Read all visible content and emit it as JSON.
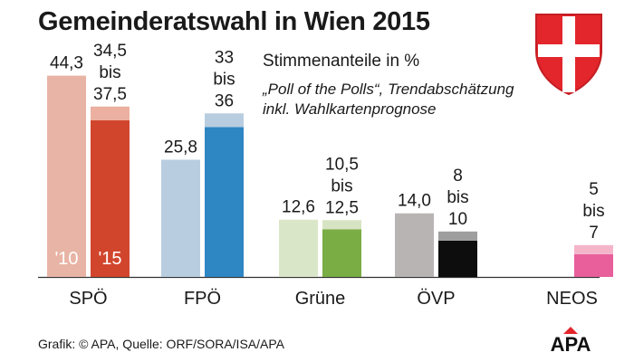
{
  "title": "Gemeinderatswahl in Wien 2015",
  "subtitle": "Stimmenanteile in %",
  "note_lines": [
    "„Poll of the Polls“, Trendabschätzung",
    "inkl. Wahlkartenprognose"
  ],
  "source": "Grafik: © APA, Quelle: ORF/SORA/ISA/APA",
  "logo_text": "APA",
  "chart_data": {
    "type": "bar",
    "categories": [
      "SPÖ",
      "FPÖ",
      "Grüne",
      "ÖVP",
      "NEOS"
    ],
    "series": [
      {
        "name": "'10",
        "values": [
          44.3,
          25.8,
          12.6,
          14.0,
          null
        ]
      },
      {
        "name": "'15",
        "ranges": [
          [
            34.5,
            37.5
          ],
          [
            33,
            36
          ],
          [
            10.5,
            12.5
          ],
          [
            8,
            10
          ],
          [
            5,
            7
          ]
        ]
      }
    ],
    "value_labels_2010": [
      "44,3",
      "25,8",
      "12,6",
      "14,0",
      ""
    ],
    "value_labels_2015": [
      [
        "34,5",
        "bis",
        "37,5"
      ],
      [
        "33",
        "bis",
        "36"
      ],
      [
        "10,5",
        "bis",
        "12,5"
      ],
      [
        "8",
        "bis",
        "10"
      ],
      [
        "5",
        "bis",
        "7"
      ]
    ],
    "year_labels": [
      "'10",
      "'15"
    ],
    "colors": {
      "SPÖ": {
        "old": "#e8b4a5",
        "range": "#ebb0a0",
        "new": "#d2452d"
      },
      "FPÖ": {
        "old": "#b9cde0",
        "range": "#b9cde0",
        "new": "#2e86c3"
      },
      "Grüne": {
        "old": "#dae6c8",
        "range": "#d7e4c4",
        "new": "#7aad44"
      },
      "ÖVP": {
        "old": "#b9b4b4",
        "range": "#9e9e9e",
        "new": "#0d0d0d"
      },
      "NEOS": {
        "old": "#f5b9cf",
        "range": "#f4b5ca",
        "new": "#e85f9b"
      }
    },
    "ylim": [
      0,
      50
    ]
  }
}
